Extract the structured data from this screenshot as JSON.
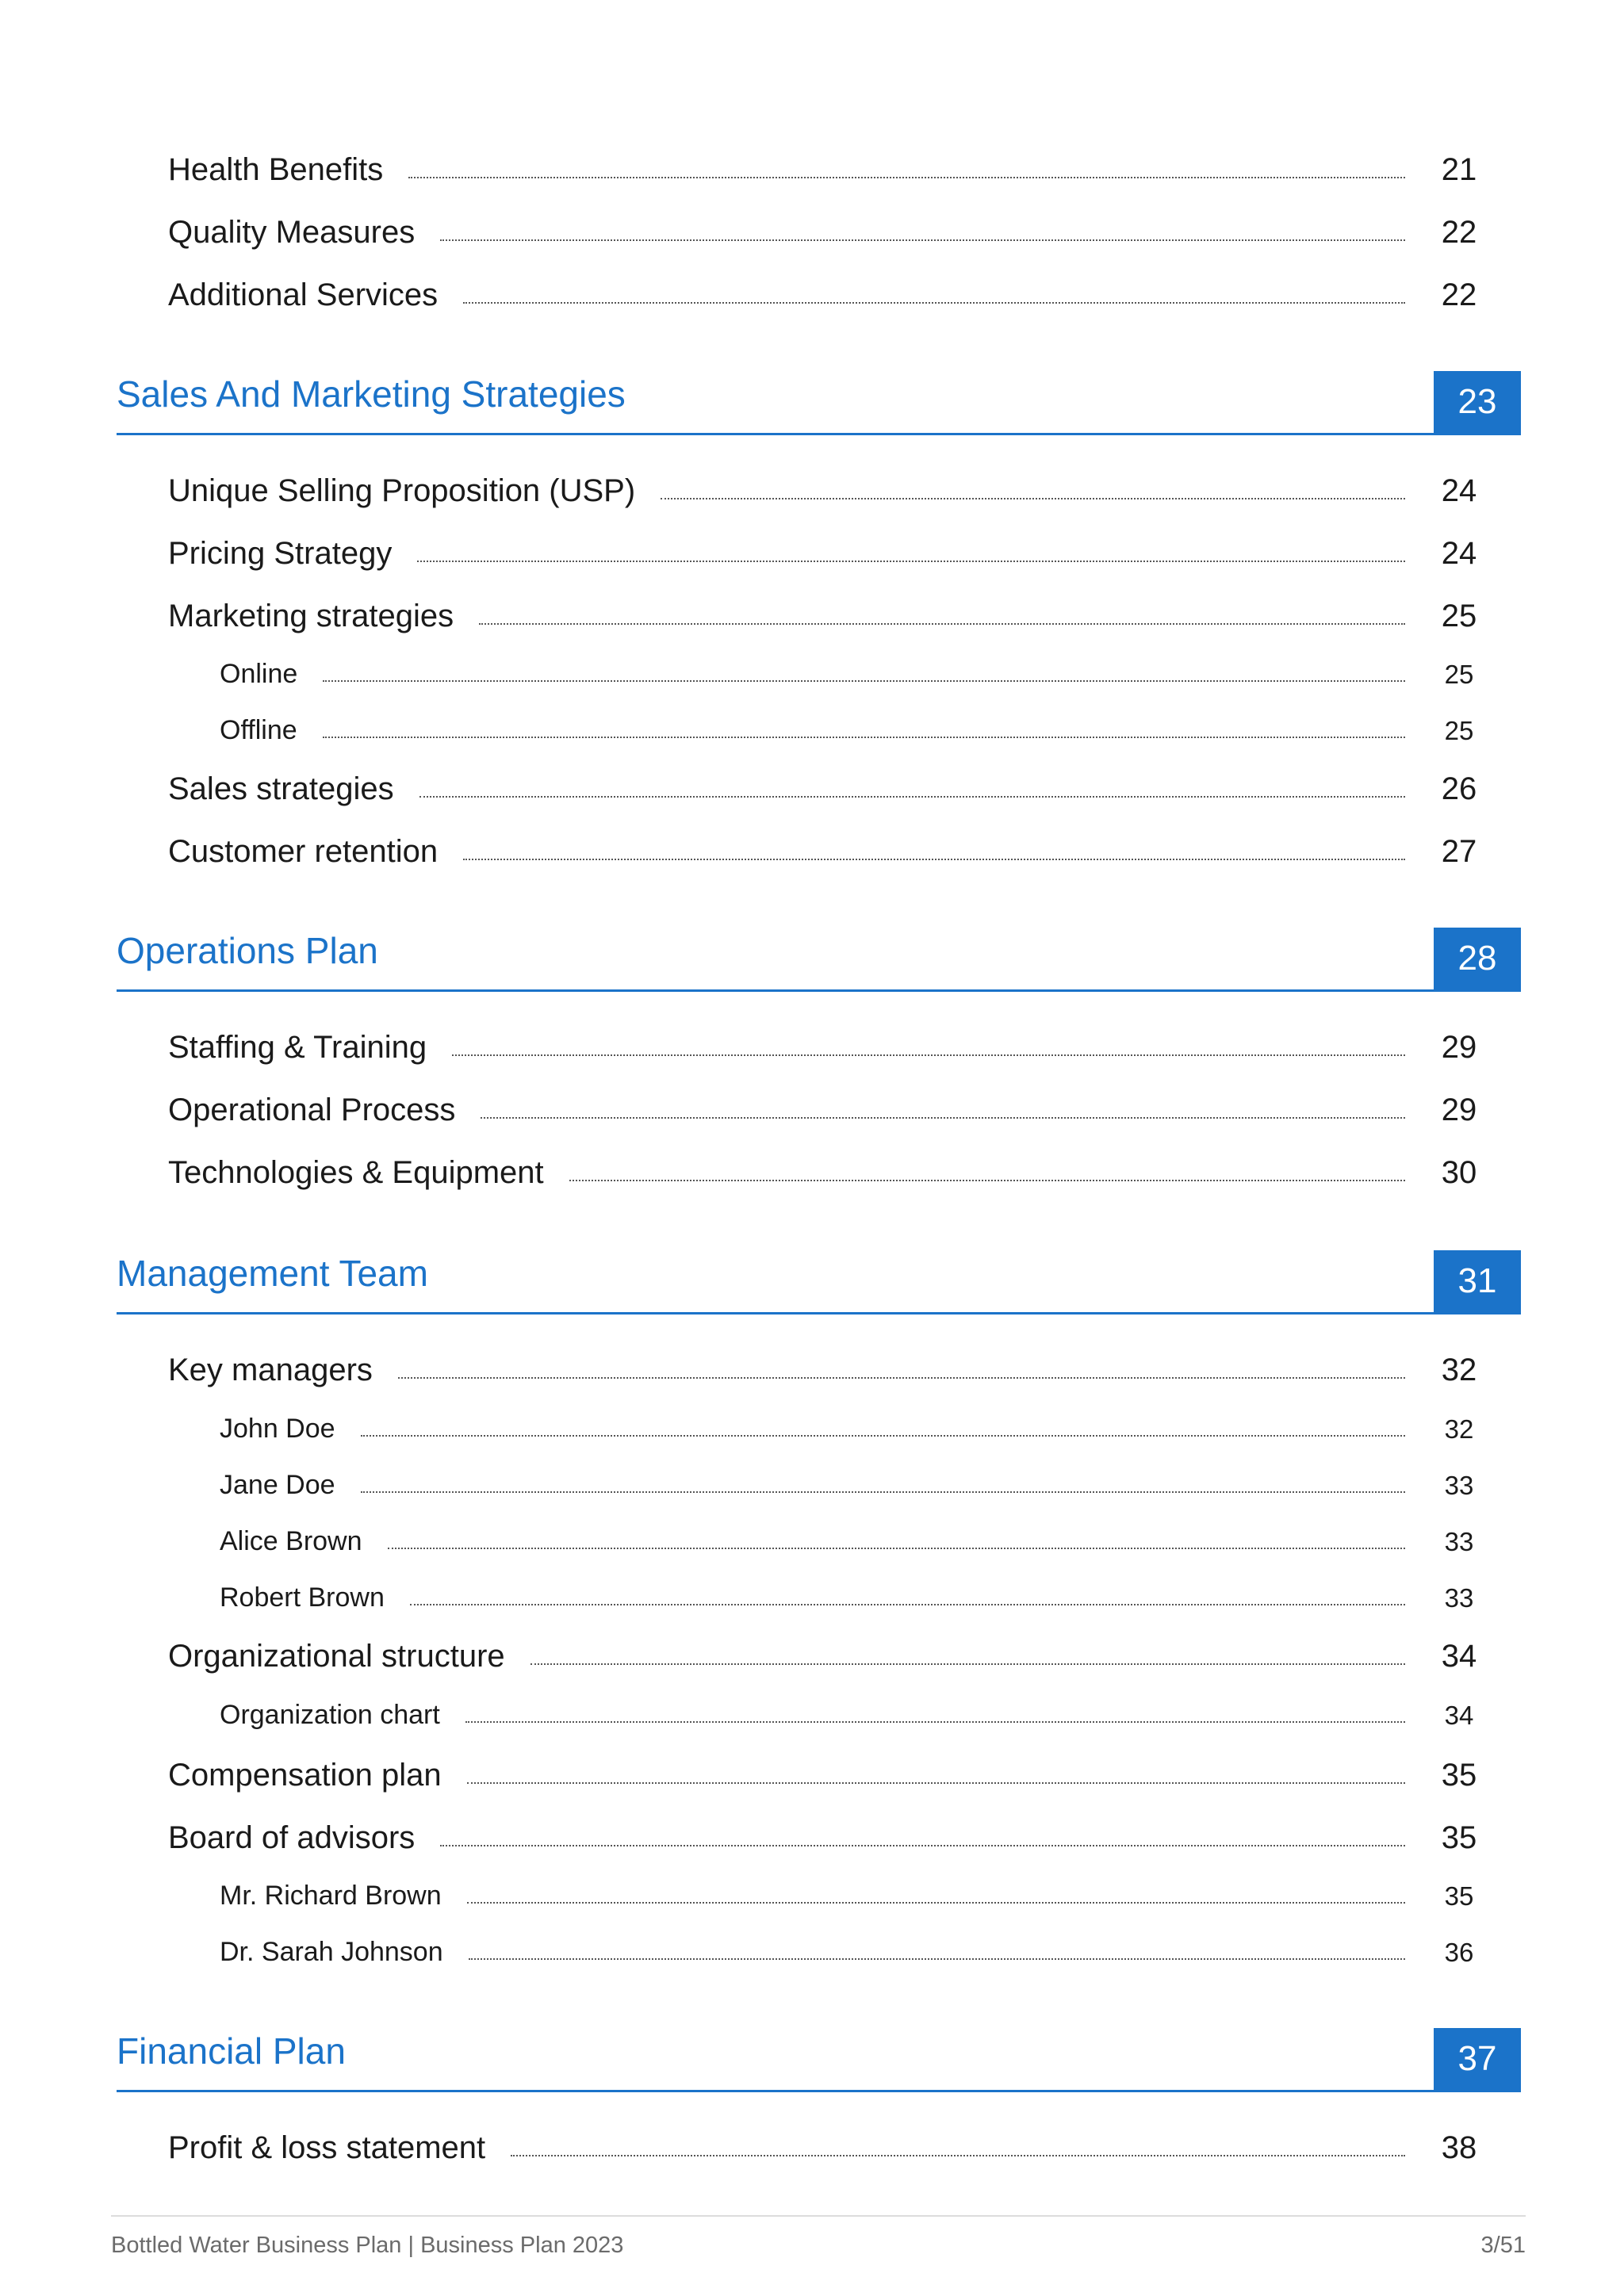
{
  "toc": {
    "top_items": [
      {
        "label": "Health Benefits",
        "page": "21"
      },
      {
        "label": "Quality Measures",
        "page": "22"
      },
      {
        "label": "Additional Services",
        "page": "22"
      }
    ],
    "sections": [
      {
        "title": "Sales And Marketing Strategies",
        "page": "23",
        "items": [
          {
            "label": "Unique Selling Proposition (USP)",
            "page": "24"
          },
          {
            "label": "Pricing Strategy",
            "page": "24"
          },
          {
            "label": "Marketing strategies",
            "page": "25"
          },
          {
            "label": "Online",
            "page": "25"
          },
          {
            "label": "Offline",
            "page": "25"
          },
          {
            "label": "Sales strategies",
            "page": "26"
          },
          {
            "label": "Customer retention",
            "page": "27"
          }
        ]
      },
      {
        "title": "Operations Plan",
        "page": "28",
        "items": [
          {
            "label": "Staffing & Training",
            "page": "29"
          },
          {
            "label": "Operational Process",
            "page": "29"
          },
          {
            "label": "Technologies & Equipment",
            "page": "30"
          }
        ]
      },
      {
        "title": "Management Team",
        "page": "31",
        "items": [
          {
            "label": "Key managers",
            "page": "32"
          },
          {
            "label": "John Doe",
            "page": "32"
          },
          {
            "label": "Jane Doe",
            "page": "33"
          },
          {
            "label": "Alice Brown",
            "page": "33"
          },
          {
            "label": "Robert Brown",
            "page": "33"
          },
          {
            "label": "Organizational structure",
            "page": "34"
          },
          {
            "label": "Organization chart",
            "page": "34"
          },
          {
            "label": "Compensation plan",
            "page": "35"
          },
          {
            "label": "Board of advisors",
            "page": "35"
          },
          {
            "label": "Mr. Richard Brown",
            "page": "35"
          },
          {
            "label": "Dr. Sarah Johnson",
            "page": "36"
          }
        ]
      },
      {
        "title": "Financial Plan",
        "page": "37",
        "items": [
          {
            "label": "Profit & loss statement",
            "page": "38"
          }
        ]
      }
    ]
  },
  "footer": {
    "left": "Bottled Water Business Plan | Business Plan 2023",
    "right": "3/51"
  },
  "colors": {
    "accent": "#1b73c9",
    "text": "#1a1a1a",
    "footer_text": "#6b6b6b"
  }
}
